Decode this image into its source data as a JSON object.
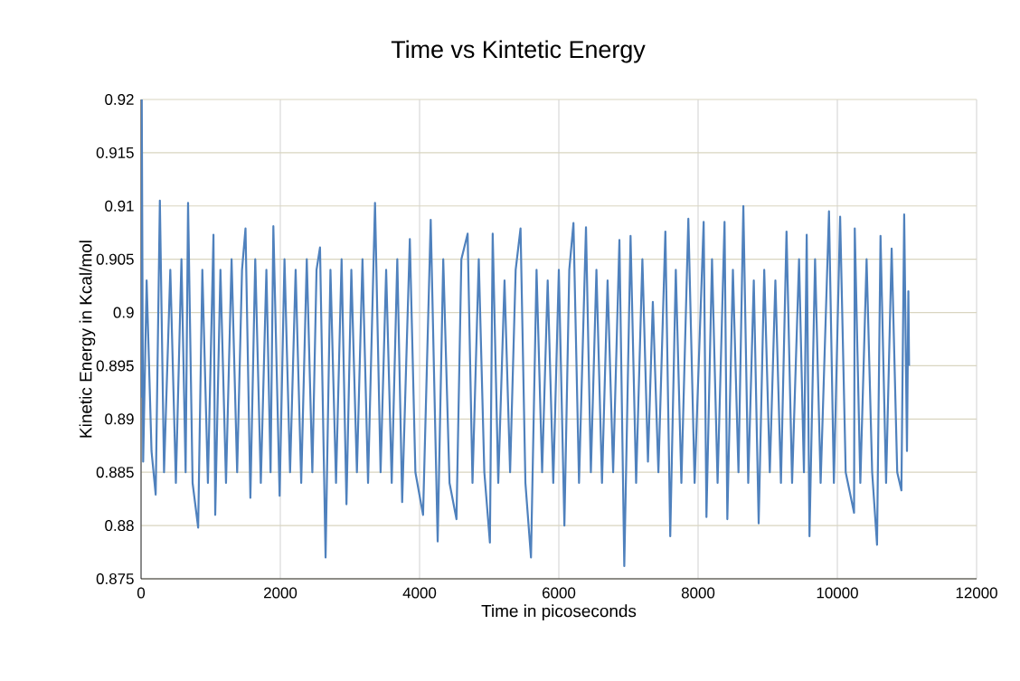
{
  "chart_data": {
    "type": "line",
    "title": "Time vs Kintetic Energy",
    "xlabel": "Time in picoseconds",
    "ylabel": "Kinetic Energy in Kcal/mol",
    "xlim": [
      0,
      12000
    ],
    "xticks": [
      0,
      2000,
      4000,
      6000,
      8000,
      10000,
      12000
    ],
    "ylim": [
      0.875,
      0.92
    ],
    "yticks": [
      0.875,
      0.88,
      0.885,
      0.89,
      0.895,
      0.9,
      0.905,
      0.91,
      0.915,
      0.92
    ],
    "grid": true,
    "marker": "none",
    "line_style": "solid",
    "series": [
      {
        "color": "#4f81bd",
        "x": [
          0,
          10,
          30,
          80,
          150,
          210,
          270,
          330,
          420,
          500,
          580,
          640,
          675,
          740,
          820,
          880,
          960,
          1040,
          1065,
          1140,
          1220,
          1300,
          1380,
          1450,
          1500,
          1570,
          1640,
          1720,
          1800,
          1860,
          1900,
          1990,
          2060,
          2140,
          2220,
          2300,
          2380,
          2460,
          2520,
          2570,
          2650,
          2720,
          2800,
          2880,
          2950,
          3020,
          3100,
          3180,
          3260,
          3360,
          3440,
          3520,
          3600,
          3680,
          3750,
          3860,
          3940,
          4050,
          4160,
          4260,
          4340,
          4430,
          4530,
          4600,
          4690,
          4760,
          4850,
          4930,
          5010,
          5050,
          5130,
          5220,
          5300,
          5380,
          5450,
          5520,
          5600,
          5680,
          5760,
          5840,
          5920,
          6000,
          6080,
          6150,
          6210,
          6290,
          6390,
          6460,
          6540,
          6620,
          6700,
          6780,
          6870,
          6940,
          7030,
          7110,
          7200,
          7280,
          7350,
          7430,
          7530,
          7600,
          7680,
          7760,
          7860,
          7950,
          8080,
          8120,
          8200,
          8280,
          8380,
          8420,
          8500,
          8580,
          8650,
          8720,
          8800,
          8870,
          8950,
          9030,
          9110,
          9190,
          9270,
          9350,
          9450,
          9520,
          9560,
          9600,
          9680,
          9760,
          9880,
          9950,
          10040,
          10120,
          10240,
          10250,
          10330,
          10420,
          10500,
          10570,
          10620,
          10700,
          10780,
          10860,
          10920,
          10960,
          11000,
          11020,
          11030
        ],
        "values": [
          0.892,
          0.92,
          0.886,
          0.903,
          0.887,
          0.8829,
          0.9105,
          0.885,
          0.904,
          0.884,
          0.905,
          0.885,
          0.9103,
          0.884,
          0.8798,
          0.904,
          0.884,
          0.9073,
          0.881,
          0.904,
          0.884,
          0.905,
          0.885,
          0.904,
          0.9079,
          0.8826,
          0.905,
          0.884,
          0.904,
          0.885,
          0.9081,
          0.8828,
          0.905,
          0.885,
          0.904,
          0.884,
          0.905,
          0.885,
          0.904,
          0.9061,
          0.877,
          0.904,
          0.884,
          0.905,
          0.882,
          0.904,
          0.885,
          0.905,
          0.884,
          0.9103,
          0.885,
          0.904,
          0.884,
          0.905,
          0.8822,
          0.9069,
          0.885,
          0.881,
          0.9087,
          0.8785,
          0.905,
          0.884,
          0.8806,
          0.905,
          0.9074,
          0.884,
          0.905,
          0.885,
          0.8784,
          0.9074,
          0.884,
          0.903,
          0.885,
          0.904,
          0.9079,
          0.884,
          0.877,
          0.904,
          0.885,
          0.903,
          0.884,
          0.904,
          0.88,
          0.904,
          0.9084,
          0.884,
          0.908,
          0.885,
          0.904,
          0.884,
          0.903,
          0.885,
          0.9068,
          0.8762,
          0.9072,
          0.884,
          0.905,
          0.886,
          0.901,
          0.885,
          0.9076,
          0.879,
          0.904,
          0.884,
          0.9088,
          0.884,
          0.9085,
          0.8808,
          0.905,
          0.884,
          0.9085,
          0.8806,
          0.904,
          0.885,
          0.91,
          0.884,
          0.903,
          0.8802,
          0.904,
          0.885,
          0.903,
          0.884,
          0.9076,
          0.884,
          0.905,
          0.885,
          0.9073,
          0.879,
          0.905,
          0.884,
          0.9095,
          0.884,
          0.909,
          0.885,
          0.8812,
          0.9079,
          0.884,
          0.905,
          0.885,
          0.8782,
          0.9072,
          0.884,
          0.906,
          0.885,
          0.8833,
          0.9092,
          0.887,
          0.902,
          0.895
        ]
      }
    ]
  }
}
